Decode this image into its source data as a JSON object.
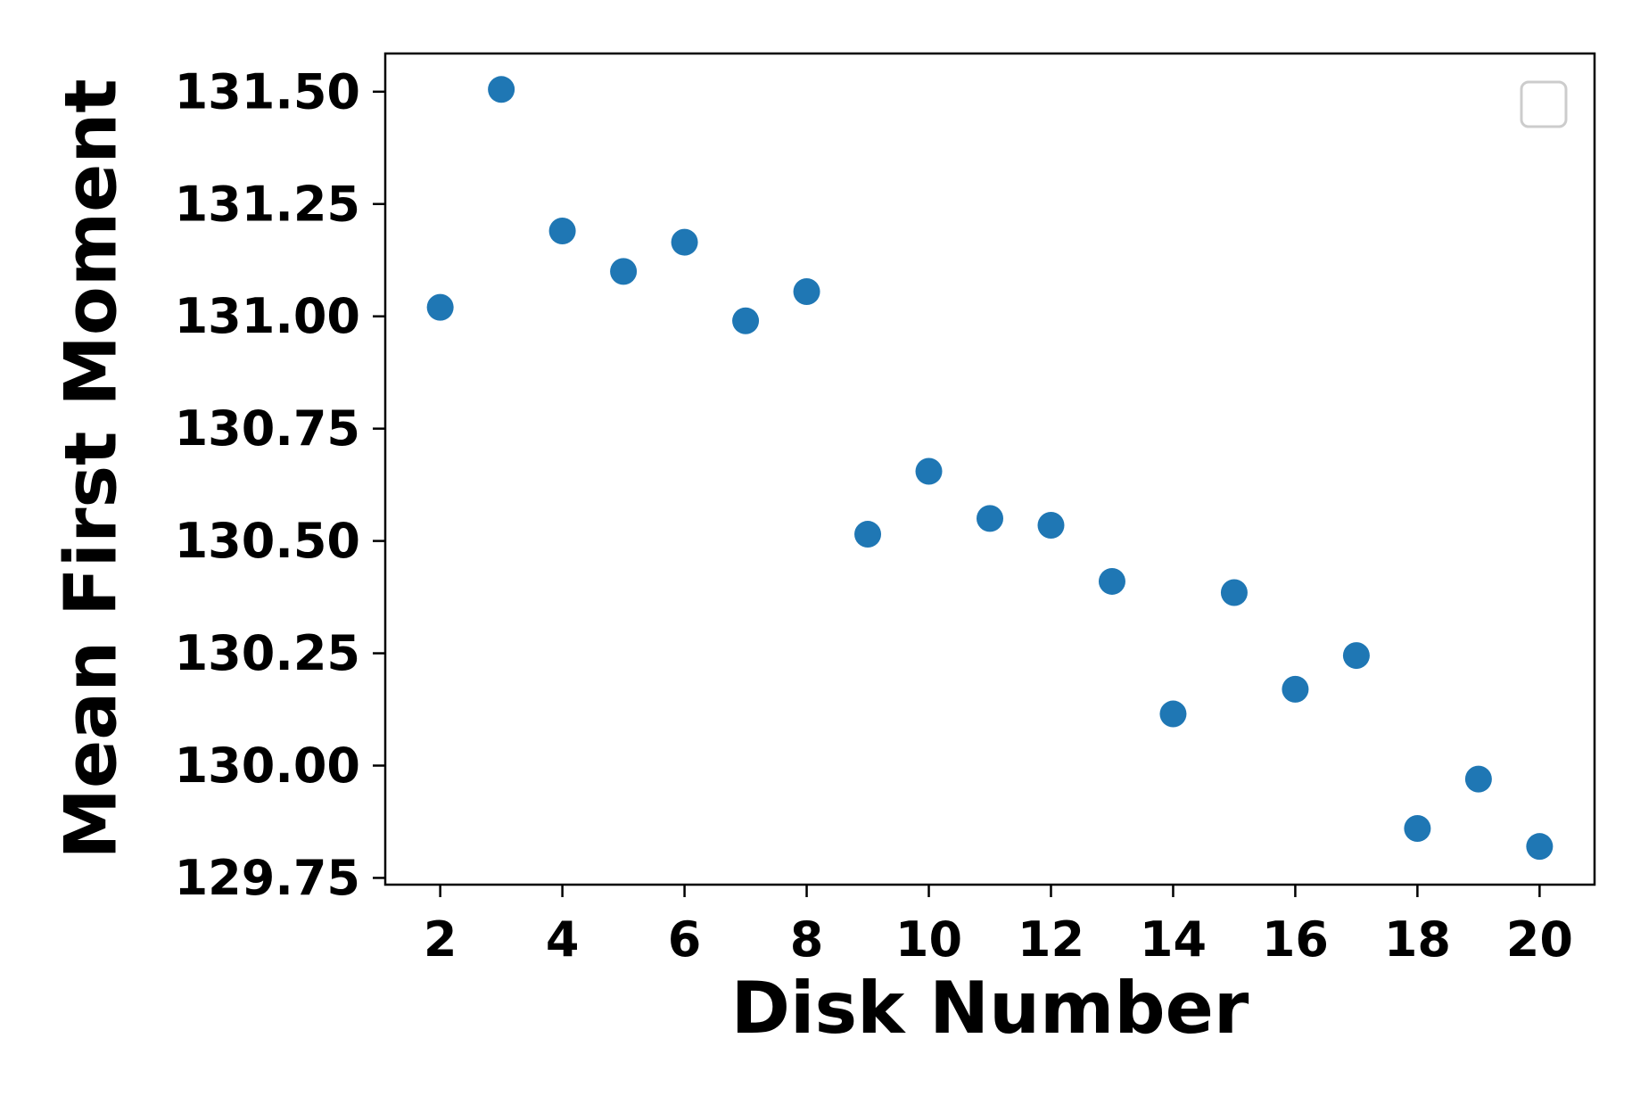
{
  "chart_data": {
    "type": "scatter",
    "title": "",
    "xlabel": "Disk Number",
    "ylabel": "Mean First Moment",
    "xlim": [
      1.1,
      20.9
    ],
    "ylim": [
      129.735,
      131.585
    ],
    "xticks": [
      2,
      4,
      6,
      8,
      10,
      12,
      14,
      16,
      18,
      20
    ],
    "xtick_labels": [
      "2",
      "4",
      "6",
      "8",
      "10",
      "12",
      "14",
      "16",
      "18",
      "20"
    ],
    "yticks": [
      129.75,
      130.0,
      130.25,
      130.5,
      130.75,
      131.0,
      131.25,
      131.5
    ],
    "ytick_labels": [
      "129.75",
      "130.00",
      "130.25",
      "130.50",
      "130.75",
      "131.00",
      "131.25",
      "131.50"
    ],
    "grid": false,
    "legend": {
      "placement": "top-right",
      "entries": []
    },
    "series": [
      {
        "color": "#1f77b4",
        "points": [
          {
            "x": 2,
            "y": 131.02
          },
          {
            "x": 3,
            "y": 131.505
          },
          {
            "x": 4,
            "y": 131.19
          },
          {
            "x": 5,
            "y": 131.1
          },
          {
            "x": 6,
            "y": 131.165
          },
          {
            "x": 7,
            "y": 130.99
          },
          {
            "x": 8,
            "y": 131.055
          },
          {
            "x": 9,
            "y": 130.515
          },
          {
            "x": 10,
            "y": 130.655
          },
          {
            "x": 11,
            "y": 130.55
          },
          {
            "x": 12,
            "y": 130.535
          },
          {
            "x": 13,
            "y": 130.41
          },
          {
            "x": 14,
            "y": 130.115
          },
          {
            "x": 15,
            "y": 130.385
          },
          {
            "x": 16,
            "y": 130.17
          },
          {
            "x": 17,
            "y": 130.245
          },
          {
            "x": 18,
            "y": 129.86
          },
          {
            "x": 19,
            "y": 129.97
          },
          {
            "x": 20,
            "y": 129.82
          }
        ]
      }
    ]
  }
}
